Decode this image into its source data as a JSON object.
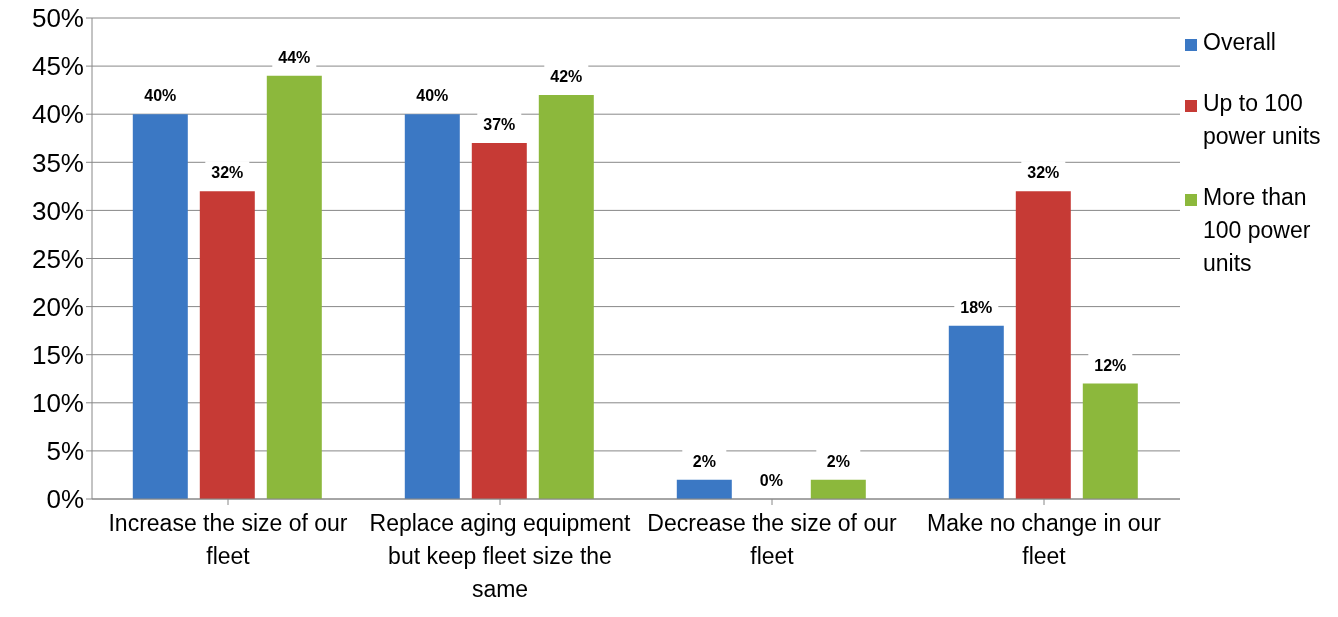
{
  "chart_data": {
    "type": "bar",
    "categories": [
      "Increase the size of our fleet",
      "Replace aging equipment but keep fleet size the same",
      "Decrease the size of our fleet",
      "Make no change in our fleet"
    ],
    "series": [
      {
        "name": "Overall",
        "color": "#3b78c4",
        "values": [
          40,
          40,
          2,
          18
        ],
        "value_labels": [
          "40%",
          "40%",
          "2%",
          "18%"
        ]
      },
      {
        "name": "Up to 100 power units",
        "color": "#c63a35",
        "values": [
          32,
          37,
          0,
          32
        ],
        "value_labels": [
          "32%",
          "37%",
          "0%",
          "32%"
        ]
      },
      {
        "name": "More than 100 power units",
        "color": "#8cb83c",
        "values": [
          44,
          42,
          2,
          12
        ],
        "value_labels": [
          "44%",
          "42%",
          "2%",
          "12%"
        ]
      }
    ],
    "ylim": [
      0,
      50
    ],
    "yticks": [
      {
        "value": 0,
        "label": "0%"
      },
      {
        "value": 5,
        "label": "5%"
      },
      {
        "value": 10,
        "label": "10%"
      },
      {
        "value": 15,
        "label": "15%"
      },
      {
        "value": 20,
        "label": "20%"
      },
      {
        "value": 25,
        "label": "25%"
      },
      {
        "value": 30,
        "label": "30%"
      },
      {
        "value": 35,
        "label": "35%"
      },
      {
        "value": 40,
        "label": "40%"
      },
      {
        "value": 45,
        "label": "45%"
      },
      {
        "value": 50,
        "label": "50%"
      }
    ],
    "grid": "y",
    "legend": "top right"
  }
}
